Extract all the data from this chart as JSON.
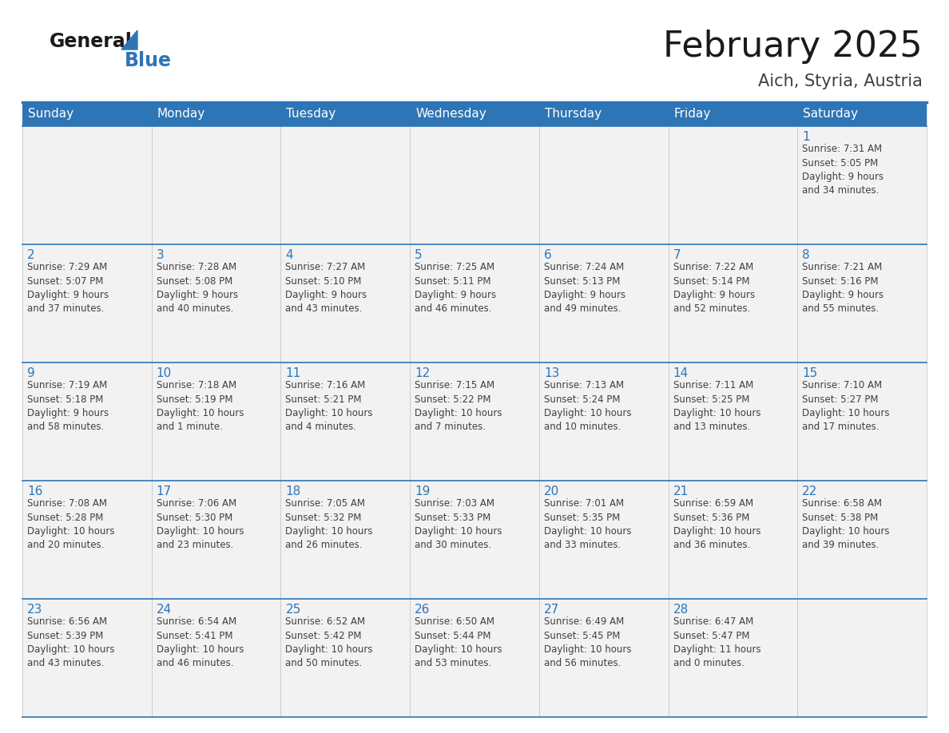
{
  "title": "February 2025",
  "subtitle": "Aich, Styria, Austria",
  "days_of_week": [
    "Sunday",
    "Monday",
    "Tuesday",
    "Wednesday",
    "Thursday",
    "Friday",
    "Saturday"
  ],
  "header_bg": "#2E75B6",
  "header_text": "#FFFFFF",
  "cell_bg": "#F2F2F2",
  "border_color": "#2E75B6",
  "day_number_color": "#2E75B6",
  "text_color": "#404040",
  "title_color": "#1a1a1a",
  "subtitle_color": "#404040",
  "calendar_data": [
    [
      null,
      null,
      null,
      null,
      null,
      null,
      {
        "day": 1,
        "sunrise": "7:31 AM",
        "sunset": "5:05 PM",
        "daylight": "9 hours\nand 34 minutes."
      }
    ],
    [
      {
        "day": 2,
        "sunrise": "7:29 AM",
        "sunset": "5:07 PM",
        "daylight": "9 hours\nand 37 minutes."
      },
      {
        "day": 3,
        "sunrise": "7:28 AM",
        "sunset": "5:08 PM",
        "daylight": "9 hours\nand 40 minutes."
      },
      {
        "day": 4,
        "sunrise": "7:27 AM",
        "sunset": "5:10 PM",
        "daylight": "9 hours\nand 43 minutes."
      },
      {
        "day": 5,
        "sunrise": "7:25 AM",
        "sunset": "5:11 PM",
        "daylight": "9 hours\nand 46 minutes."
      },
      {
        "day": 6,
        "sunrise": "7:24 AM",
        "sunset": "5:13 PM",
        "daylight": "9 hours\nand 49 minutes."
      },
      {
        "day": 7,
        "sunrise": "7:22 AM",
        "sunset": "5:14 PM",
        "daylight": "9 hours\nand 52 minutes."
      },
      {
        "day": 8,
        "sunrise": "7:21 AM",
        "sunset": "5:16 PM",
        "daylight": "9 hours\nand 55 minutes."
      }
    ],
    [
      {
        "day": 9,
        "sunrise": "7:19 AM",
        "sunset": "5:18 PM",
        "daylight": "9 hours\nand 58 minutes."
      },
      {
        "day": 10,
        "sunrise": "7:18 AM",
        "sunset": "5:19 PM",
        "daylight": "10 hours\nand 1 minute."
      },
      {
        "day": 11,
        "sunrise": "7:16 AM",
        "sunset": "5:21 PM",
        "daylight": "10 hours\nand 4 minutes."
      },
      {
        "day": 12,
        "sunrise": "7:15 AM",
        "sunset": "5:22 PM",
        "daylight": "10 hours\nand 7 minutes."
      },
      {
        "day": 13,
        "sunrise": "7:13 AM",
        "sunset": "5:24 PM",
        "daylight": "10 hours\nand 10 minutes."
      },
      {
        "day": 14,
        "sunrise": "7:11 AM",
        "sunset": "5:25 PM",
        "daylight": "10 hours\nand 13 minutes."
      },
      {
        "day": 15,
        "sunrise": "7:10 AM",
        "sunset": "5:27 PM",
        "daylight": "10 hours\nand 17 minutes."
      }
    ],
    [
      {
        "day": 16,
        "sunrise": "7:08 AM",
        "sunset": "5:28 PM",
        "daylight": "10 hours\nand 20 minutes."
      },
      {
        "day": 17,
        "sunrise": "7:06 AM",
        "sunset": "5:30 PM",
        "daylight": "10 hours\nand 23 minutes."
      },
      {
        "day": 18,
        "sunrise": "7:05 AM",
        "sunset": "5:32 PM",
        "daylight": "10 hours\nand 26 minutes."
      },
      {
        "day": 19,
        "sunrise": "7:03 AM",
        "sunset": "5:33 PM",
        "daylight": "10 hours\nand 30 minutes."
      },
      {
        "day": 20,
        "sunrise": "7:01 AM",
        "sunset": "5:35 PM",
        "daylight": "10 hours\nand 33 minutes."
      },
      {
        "day": 21,
        "sunrise": "6:59 AM",
        "sunset": "5:36 PM",
        "daylight": "10 hours\nand 36 minutes."
      },
      {
        "day": 22,
        "sunrise": "6:58 AM",
        "sunset": "5:38 PM",
        "daylight": "10 hours\nand 39 minutes."
      }
    ],
    [
      {
        "day": 23,
        "sunrise": "6:56 AM",
        "sunset": "5:39 PM",
        "daylight": "10 hours\nand 43 minutes."
      },
      {
        "day": 24,
        "sunrise": "6:54 AM",
        "sunset": "5:41 PM",
        "daylight": "10 hours\nand 46 minutes."
      },
      {
        "day": 25,
        "sunrise": "6:52 AM",
        "sunset": "5:42 PM",
        "daylight": "10 hours\nand 50 minutes."
      },
      {
        "day": 26,
        "sunrise": "6:50 AM",
        "sunset": "5:44 PM",
        "daylight": "10 hours\nand 53 minutes."
      },
      {
        "day": 27,
        "sunrise": "6:49 AM",
        "sunset": "5:45 PM",
        "daylight": "10 hours\nand 56 minutes."
      },
      {
        "day": 28,
        "sunrise": "6:47 AM",
        "sunset": "5:47 PM",
        "daylight": "11 hours\nand 0 minutes."
      },
      null
    ]
  ],
  "header_fontsize": 11,
  "day_num_fontsize": 11,
  "cell_text_fontsize": 8.5,
  "title_fontsize": 32,
  "subtitle_fontsize": 15,
  "logo_general_fontsize": 17,
  "logo_blue_fontsize": 17
}
